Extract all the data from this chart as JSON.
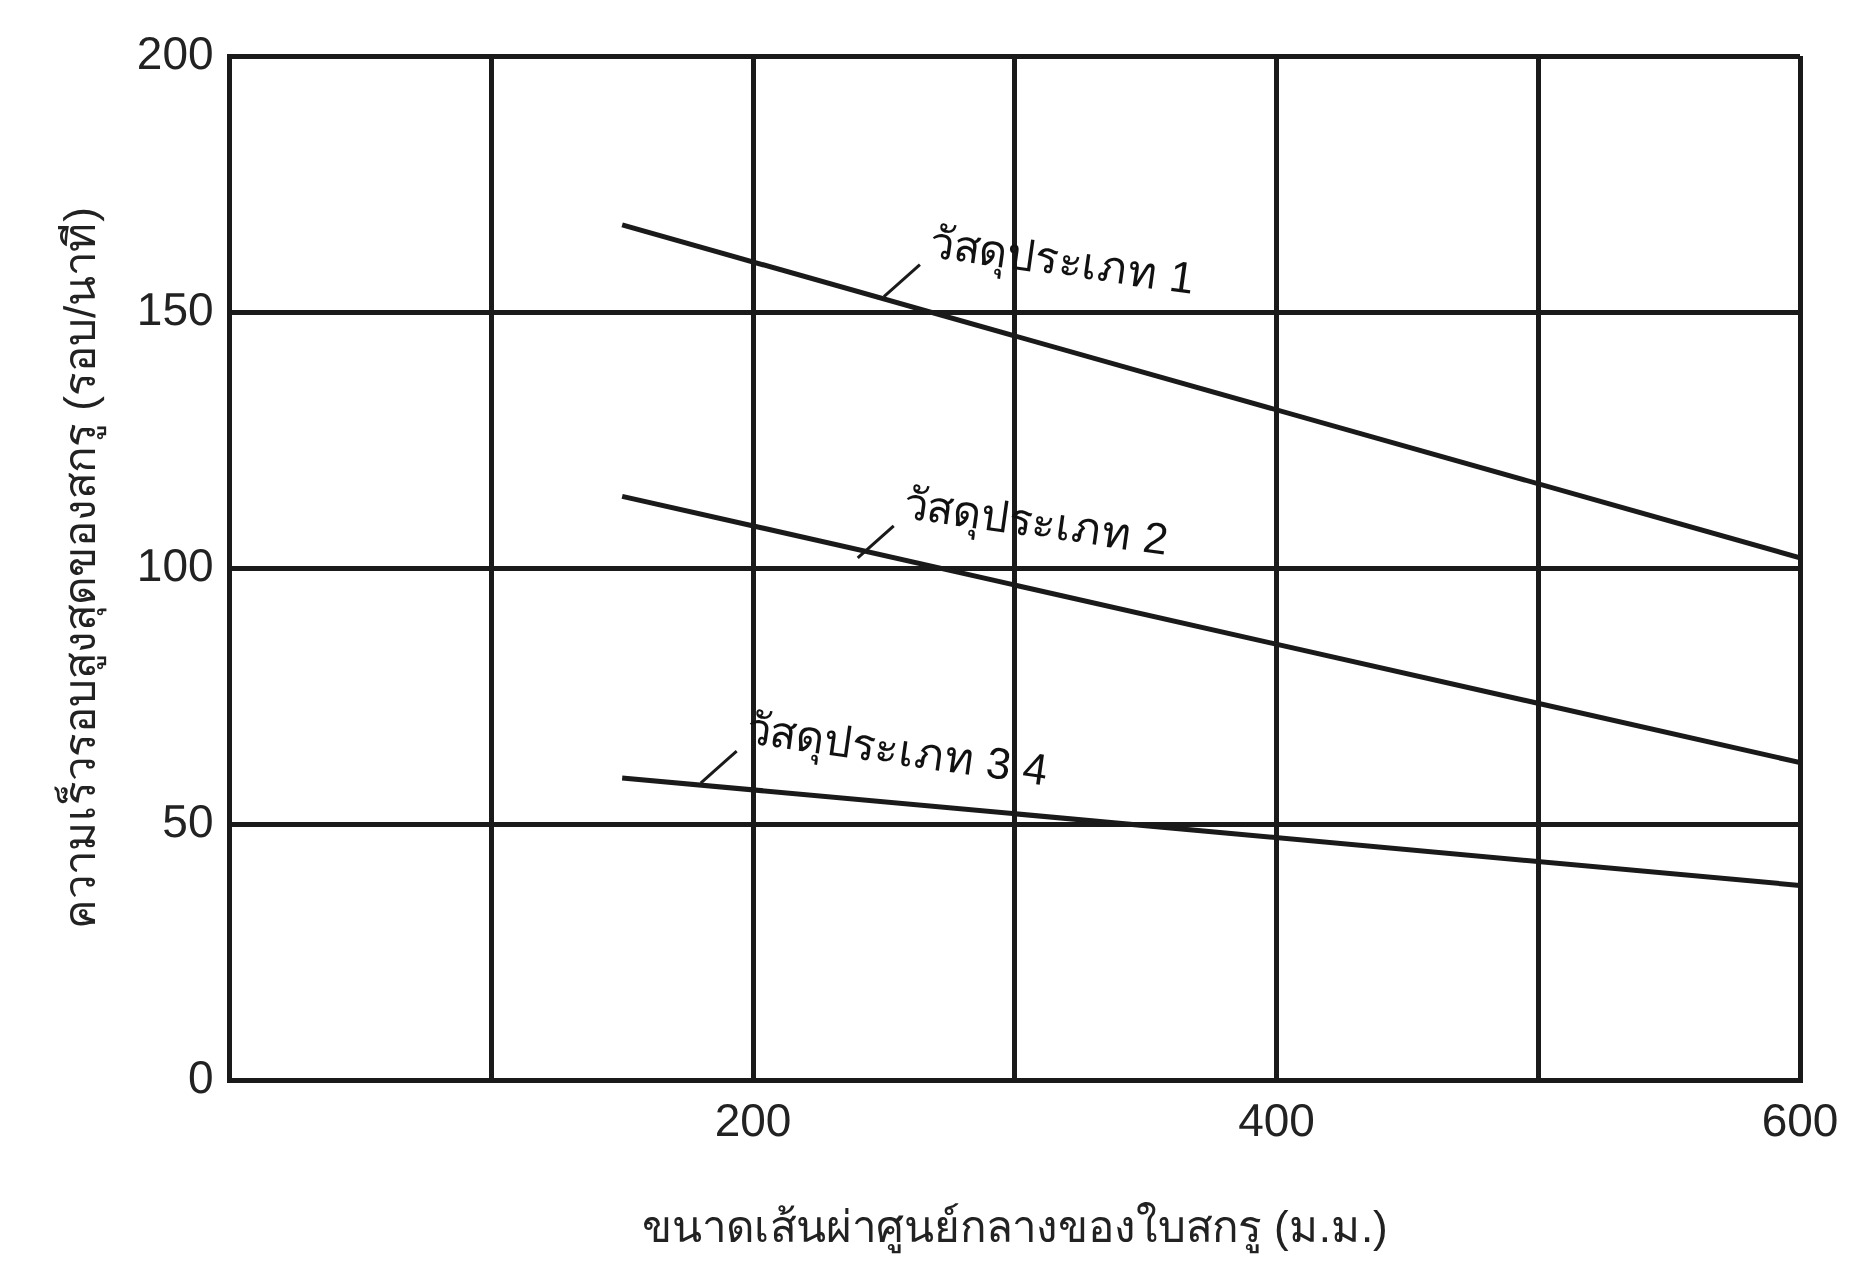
{
  "chart_data": {
    "type": "line",
    "xlabel": "ขนาดเส้นผ่าศูนย์กลางของใบสกรู (ม.ม.)",
    "ylabel": "ความเร็วรอบสูงสุดของสกรู (รอบ/นาที)",
    "x": [
      150,
      600
    ],
    "series": [
      {
        "color": "#1a1a1a",
        "values": [
          167,
          102
        ]
      },
      {
        "color": "#1a1a1a",
        "values": [
          114,
          62
        ]
      },
      {
        "color": "#1a1a1a",
        "values": [
          59,
          38
        ]
      }
    ],
    "annotations": [
      {
        "text": "วัสดุประเภท 1",
        "x": 250,
        "y": 153
      },
      {
        "text": "วัสดุประเภท 2",
        "x": 240,
        "y": 102
      },
      {
        "text": "วัสดุประเภท 3 4",
        "x": 180,
        "y": 58
      }
    ],
    "xlim": [
      0,
      600
    ],
    "xticks": [
      {
        "value": 100,
        "label": null
      },
      200,
      {
        "value": 300,
        "label": null
      },
      400,
      {
        "value": 500,
        "label": null
      },
      600
    ],
    "ylim": [
      0,
      200
    ],
    "yticks": [
      0,
      50,
      100,
      150,
      200
    ],
    "grid": true,
    "legend": false,
    "marker": "none",
    "line_style": "solid"
  }
}
